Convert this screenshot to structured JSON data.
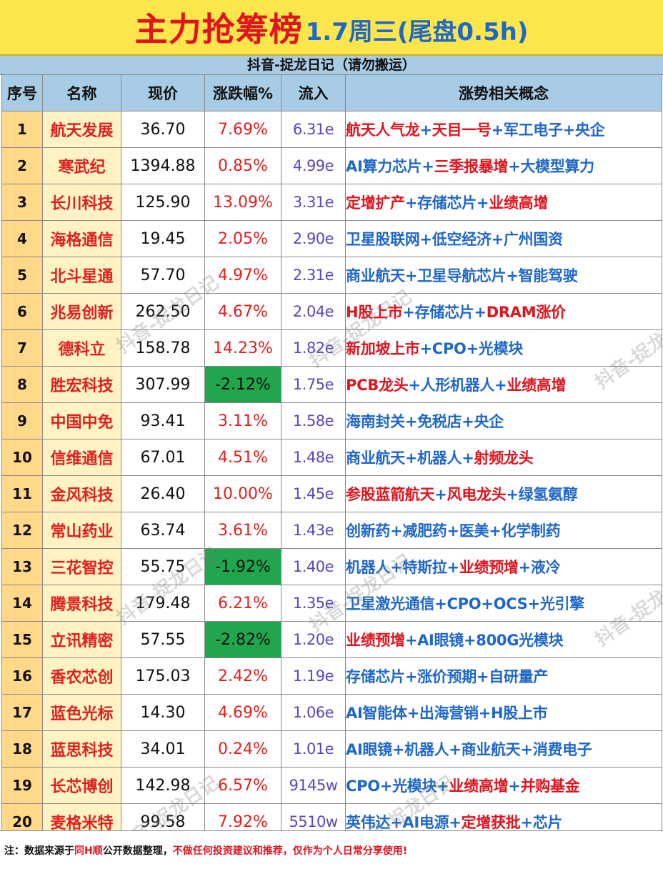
{
  "title": {
    "main": "主力抢筹榜",
    "date": "1.7周三(尾盘0.5h)"
  },
  "subtitle": "抖音-捉龙日记（请勿搬运）",
  "columns": [
    "序号",
    "名称",
    "现价",
    "涨跌幅%",
    "流入",
    "涨势相关概念"
  ],
  "rows": [
    {
      "seq": "1",
      "name": "航天发展",
      "price": "36.70",
      "change": "7.69%",
      "neg": false,
      "flow": "6.31e",
      "concepts": [
        {
          "text": "航天人气龙",
          "color": "red"
        },
        {
          "text": "天目一号",
          "color": "red"
        },
        {
          "text": "军工电子",
          "color": "blue"
        },
        {
          "text": "央企",
          "color": "blue"
        }
      ]
    },
    {
      "seq": "2",
      "name": "寒武纪",
      "price": "1394.88",
      "change": "0.85%",
      "neg": false,
      "flow": "4.99e",
      "concepts": [
        {
          "text": "AI算力芯片",
          "color": "blue"
        },
        {
          "text": "三季报暴增",
          "color": "red"
        },
        {
          "text": "大模型算力",
          "color": "blue"
        }
      ]
    },
    {
      "seq": "3",
      "name": "长川科技",
      "price": "125.90",
      "change": "13.09%",
      "neg": false,
      "flow": "3.31e",
      "concepts": [
        {
          "text": "定增扩产",
          "color": "red"
        },
        {
          "text": "存储芯片",
          "color": "blue"
        },
        {
          "text": "业绩高增",
          "color": "red"
        }
      ]
    },
    {
      "seq": "4",
      "name": "海格通信",
      "price": "19.45",
      "change": "2.05%",
      "neg": false,
      "flow": "2.90e",
      "concepts": [
        {
          "text": "卫星股联网",
          "color": "blue"
        },
        {
          "text": "低空经济",
          "color": "blue"
        },
        {
          "text": "广州国资",
          "color": "blue"
        }
      ]
    },
    {
      "seq": "5",
      "name": "北斗星通",
      "price": "57.70",
      "change": "4.97%",
      "neg": false,
      "flow": "2.31e",
      "concepts": [
        {
          "text": "商业航天",
          "color": "blue"
        },
        {
          "text": "卫星导航芯片",
          "color": "blue"
        },
        {
          "text": "智能驾驶",
          "color": "blue"
        }
      ]
    },
    {
      "seq": "6",
      "name": "兆易创新",
      "price": "262.50",
      "change": "4.67%",
      "neg": false,
      "flow": "2.04e",
      "concepts": [
        {
          "text": "H股上市",
          "color": "red"
        },
        {
          "text": "存储芯片",
          "color": "blue"
        },
        {
          "text": "DRAM涨价",
          "color": "red"
        }
      ]
    },
    {
      "seq": "7",
      "name": "德科立",
      "price": "158.78",
      "change": "14.23%",
      "neg": false,
      "flow": "1.82e",
      "concepts": [
        {
          "text": "新加坡上市",
          "color": "red"
        },
        {
          "text": "CPO",
          "color": "blue"
        },
        {
          "text": "光模块",
          "color": "blue"
        }
      ]
    },
    {
      "seq": "8",
      "name": "胜宏科技",
      "price": "307.99",
      "change": "-2.12%",
      "neg": true,
      "flow": "1.75e",
      "concepts": [
        {
          "text": "PCB龙头",
          "color": "red"
        },
        {
          "text": "人形机器人",
          "color": "blue"
        },
        {
          "text": "业绩高增",
          "color": "red"
        }
      ]
    },
    {
      "seq": "9",
      "name": "中国中免",
      "price": "93.41",
      "change": "3.11%",
      "neg": false,
      "flow": "1.58e",
      "concepts": [
        {
          "text": "海南封关",
          "color": "blue"
        },
        {
          "text": "免税店",
          "color": "blue"
        },
        {
          "text": "央企",
          "color": "blue"
        }
      ]
    },
    {
      "seq": "10",
      "name": "信维通信",
      "price": "67.01",
      "change": "4.51%",
      "neg": false,
      "flow": "1.48e",
      "concepts": [
        {
          "text": "商业航天",
          "color": "blue"
        },
        {
          "text": "机器人",
          "color": "blue"
        },
        {
          "text": "射频龙头",
          "color": "red"
        }
      ]
    },
    {
      "seq": "11",
      "name": "金风科技",
      "price": "26.40",
      "change": "10.00%",
      "neg": false,
      "flow": "1.45e",
      "concepts": [
        {
          "text": "参股蓝箭航天",
          "color": "red"
        },
        {
          "text": "风电龙头",
          "color": "red"
        },
        {
          "text": "绿氢氨醇",
          "color": "blue"
        }
      ]
    },
    {
      "seq": "12",
      "name": "常山药业",
      "price": "63.74",
      "change": "3.61%",
      "neg": false,
      "flow": "1.43e",
      "concepts": [
        {
          "text": "创新药",
          "color": "blue"
        },
        {
          "text": "减肥药",
          "color": "blue"
        },
        {
          "text": "医美",
          "color": "blue"
        },
        {
          "text": "化学制药",
          "color": "blue"
        }
      ]
    },
    {
      "seq": "13",
      "name": "三花智控",
      "price": "55.75",
      "change": "-1.92%",
      "neg": true,
      "flow": "1.40e",
      "concepts": [
        {
          "text": "机器人",
          "color": "blue"
        },
        {
          "text": "特斯拉",
          "color": "blue"
        },
        {
          "text": "业绩预增",
          "color": "red"
        },
        {
          "text": "液冷",
          "color": "blue"
        }
      ]
    },
    {
      "seq": "14",
      "name": "腾景科技",
      "price": "179.48",
      "change": "6.21%",
      "neg": false,
      "flow": "1.35e",
      "concepts": [
        {
          "text": "卫星激光通信",
          "color": "blue"
        },
        {
          "text": "CPO",
          "color": "blue"
        },
        {
          "text": "OCS",
          "color": "blue"
        },
        {
          "text": "光引擎",
          "color": "blue"
        }
      ]
    },
    {
      "seq": "15",
      "name": "立讯精密",
      "price": "57.55",
      "change": "-2.82%",
      "neg": true,
      "flow": "1.20e",
      "concepts": [
        {
          "text": "业绩预增",
          "color": "red"
        },
        {
          "text": "AI眼镜",
          "color": "blue"
        },
        {
          "text": "800G光模块",
          "color": "blue"
        }
      ]
    },
    {
      "seq": "16",
      "name": "香农芯创",
      "price": "175.03",
      "change": "2.42%",
      "neg": false,
      "flow": "1.19e",
      "concepts": [
        {
          "text": "存储芯片",
          "color": "blue"
        },
        {
          "text": "涨价预期",
          "color": "blue"
        },
        {
          "text": "自研量产",
          "color": "blue"
        }
      ]
    },
    {
      "seq": "17",
      "name": "蓝色光标",
      "price": "14.30",
      "change": "4.69%",
      "neg": false,
      "flow": "1.06e",
      "concepts": [
        {
          "text": "AI智能体",
          "color": "blue"
        },
        {
          "text": "出海营销",
          "color": "blue"
        },
        {
          "text": "H股上市",
          "color": "blue"
        }
      ]
    },
    {
      "seq": "18",
      "name": "蓝思科技",
      "price": "34.01",
      "change": "0.24%",
      "neg": false,
      "flow": "1.01e",
      "concepts": [
        {
          "text": "AI眼镜",
          "color": "blue"
        },
        {
          "text": "机器人",
          "color": "blue"
        },
        {
          "text": "商业航天",
          "color": "blue"
        },
        {
          "text": "消费电子",
          "color": "blue"
        }
      ]
    },
    {
      "seq": "19",
      "name": "长芯博创",
      "price": "142.98",
      "change": "6.57%",
      "neg": false,
      "flow": "9145w",
      "concepts": [
        {
          "text": "CPO",
          "color": "blue"
        },
        {
          "text": "光模块",
          "color": "blue"
        },
        {
          "text": "业绩高增",
          "color": "red"
        },
        {
          "text": "并购基金",
          "color": "red"
        }
      ]
    },
    {
      "seq": "20",
      "name": "麦格米特",
      "price": "99.58",
      "change": "7.92%",
      "neg": false,
      "flow": "5510w",
      "concepts": [
        {
          "text": "英伟达",
          "color": "blue"
        },
        {
          "text": "AI电源",
          "color": "blue"
        },
        {
          "text": "定增获批",
          "color": "red"
        },
        {
          "text": "芯片",
          "color": "blue"
        }
      ]
    }
  ],
  "concept_separator": "+",
  "watermark": "抖音-捉龙日记",
  "footer": {
    "part1": "注：数据来源于",
    "part2": "同H顺",
    "part3": "公开数据整理，",
    "part4": "不做任何投资建议和推荐，仅作为个人日常分享使用!"
  },
  "colors": {
    "title_bg": "#fde64b",
    "header_bg": "#a9cce6",
    "negative_bg": "#21a64e",
    "accent_red": "#e0141e",
    "accent_blue": "#1f67c8"
  }
}
